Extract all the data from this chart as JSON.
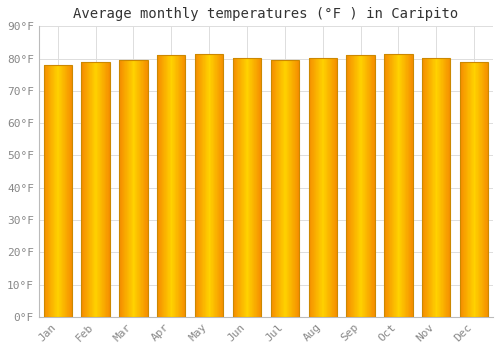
{
  "title": "Average monthly temperatures (°F ) in Caripito",
  "months": [
    "Jan",
    "Feb",
    "Mar",
    "Apr",
    "May",
    "Jun",
    "Jul",
    "Aug",
    "Sep",
    "Oct",
    "Nov",
    "Dec"
  ],
  "values": [
    78.1,
    78.8,
    79.7,
    81.1,
    81.5,
    80.2,
    79.7,
    80.2,
    81.1,
    81.3,
    80.2,
    78.8
  ],
  "bar_color_center": "#FFD000",
  "bar_color_edge": "#F5A000",
  "bar_outline_color": "#CC8800",
  "ylim": [
    0,
    90
  ],
  "yticks": [
    0,
    10,
    20,
    30,
    40,
    50,
    60,
    70,
    80,
    90
  ],
  "ytick_labels": [
    "0°F",
    "10°F",
    "20°F",
    "30°F",
    "40°F",
    "50°F",
    "60°F",
    "70°F",
    "80°F",
    "90°F"
  ],
  "background_color": "#FFFFFF",
  "plot_bg_color": "#FFFFFF",
  "grid_color": "#DDDDDD",
  "title_fontsize": 10,
  "tick_fontsize": 8,
  "tick_color": "#888888",
  "font_family": "monospace",
  "bar_width": 0.75
}
